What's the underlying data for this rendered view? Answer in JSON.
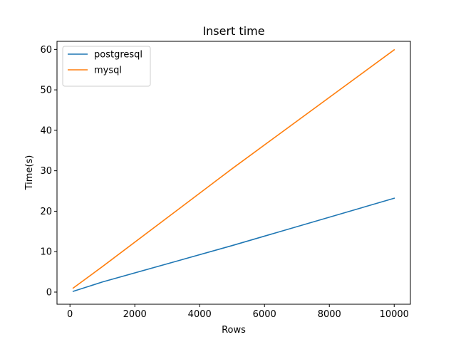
{
  "chart_data": {
    "type": "line",
    "title": "Insert time",
    "xlabel": "Rows",
    "ylabel": "Time(s)",
    "xlim": [
      -400,
      10500
    ],
    "ylim": [
      -3,
      62
    ],
    "x_ticks": [
      0,
      2000,
      4000,
      6000,
      8000,
      10000
    ],
    "y_ticks": [
      0,
      10,
      20,
      30,
      40,
      50,
      60
    ],
    "grid": false,
    "legend_position": "top-left",
    "series": [
      {
        "name": "postgresql",
        "color": "#1f77b4",
        "x": [
          100,
          1000,
          5000,
          10000
        ],
        "y": [
          0.2,
          2.5,
          11.5,
          23.2
        ]
      },
      {
        "name": "mysql",
        "color": "#ff7f0e",
        "x": [
          100,
          1000,
          5000,
          10000
        ],
        "y": [
          1.0,
          6.3,
          30.5,
          59.9
        ]
      }
    ]
  }
}
